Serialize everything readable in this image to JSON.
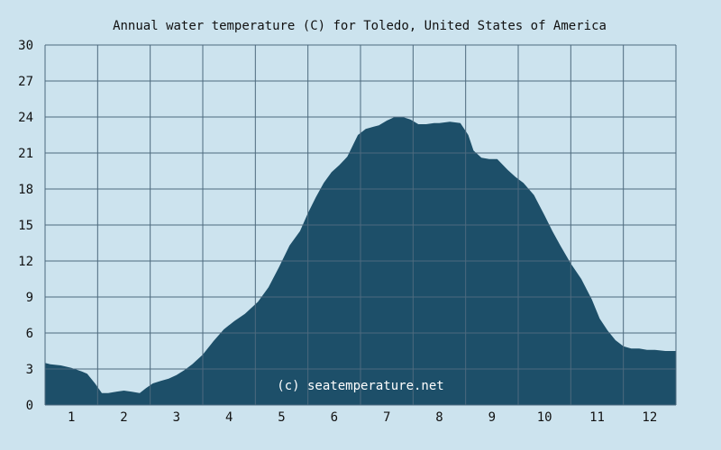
{
  "chart_data": {
    "type": "area",
    "title": "Annual water temperature (C) for Toledo, United States of America",
    "xlabel": "",
    "ylabel": "",
    "x_tick_labels": [
      "1",
      "2",
      "3",
      "4",
      "5",
      "6",
      "7",
      "8",
      "9",
      "10",
      "11",
      "12"
    ],
    "y_tick_labels": [
      "0",
      "3",
      "6",
      "9",
      "12",
      "15",
      "18",
      "21",
      "24",
      "27",
      "30"
    ],
    "ylim": [
      0,
      30
    ],
    "xlim": [
      0.5,
      12.5
    ],
    "grid": true,
    "watermark": "(c) seatemperature.net",
    "colors": {
      "background": "#cce3ee",
      "fill": "#1d4f69",
      "grid": "#4d6a7e"
    },
    "series": [
      {
        "x": [
          0.5,
          0.6,
          0.8,
          1.0,
          1.2,
          1.3,
          1.45,
          1.58,
          1.7,
          1.85,
          2.0,
          2.15,
          2.3,
          2.42,
          2.55,
          2.7,
          2.85,
          3.0,
          3.15,
          3.3,
          3.5,
          3.7,
          3.9,
          4.1,
          4.3,
          4.55,
          4.75,
          4.95,
          5.15,
          5.35,
          5.5,
          5.65,
          5.8,
          5.95,
          6.1,
          6.25,
          6.45,
          6.6,
          6.75,
          6.85,
          7.0,
          7.15,
          7.3,
          7.45,
          7.6,
          7.75,
          7.9,
          8.0,
          8.2,
          8.4,
          8.55,
          8.65,
          8.8,
          8.95,
          9.1,
          9.3,
          9.45,
          9.6,
          9.8,
          10.0,
          10.15,
          10.3,
          10.5,
          10.7,
          10.9,
          11.05,
          11.2,
          11.35,
          11.5,
          11.65,
          11.8,
          11.95,
          12.1,
          12.3,
          12.5
        ],
        "values": [
          3.5,
          3.4,
          3.3,
          3.1,
          2.8,
          2.6,
          1.8,
          1.0,
          1.0,
          1.1,
          1.2,
          1.1,
          1.0,
          1.4,
          1.8,
          2.0,
          2.2,
          2.5,
          2.9,
          3.4,
          4.2,
          5.3,
          6.3,
          7.0,
          7.6,
          8.6,
          9.8,
          11.5,
          13.3,
          14.5,
          16.0,
          17.3,
          18.5,
          19.4,
          20.0,
          20.7,
          22.5,
          23.0,
          23.2,
          23.3,
          23.7,
          24.0,
          24.0,
          23.8,
          23.4,
          23.4,
          23.5,
          23.5,
          23.6,
          23.5,
          22.5,
          21.2,
          20.6,
          20.5,
          20.5,
          19.6,
          19.0,
          18.5,
          17.5,
          15.8,
          14.5,
          13.3,
          11.8,
          10.5,
          8.8,
          7.2,
          6.2,
          5.4,
          4.9,
          4.7,
          4.7,
          4.6,
          4.6,
          4.5,
          4.5
        ]
      }
    ]
  }
}
